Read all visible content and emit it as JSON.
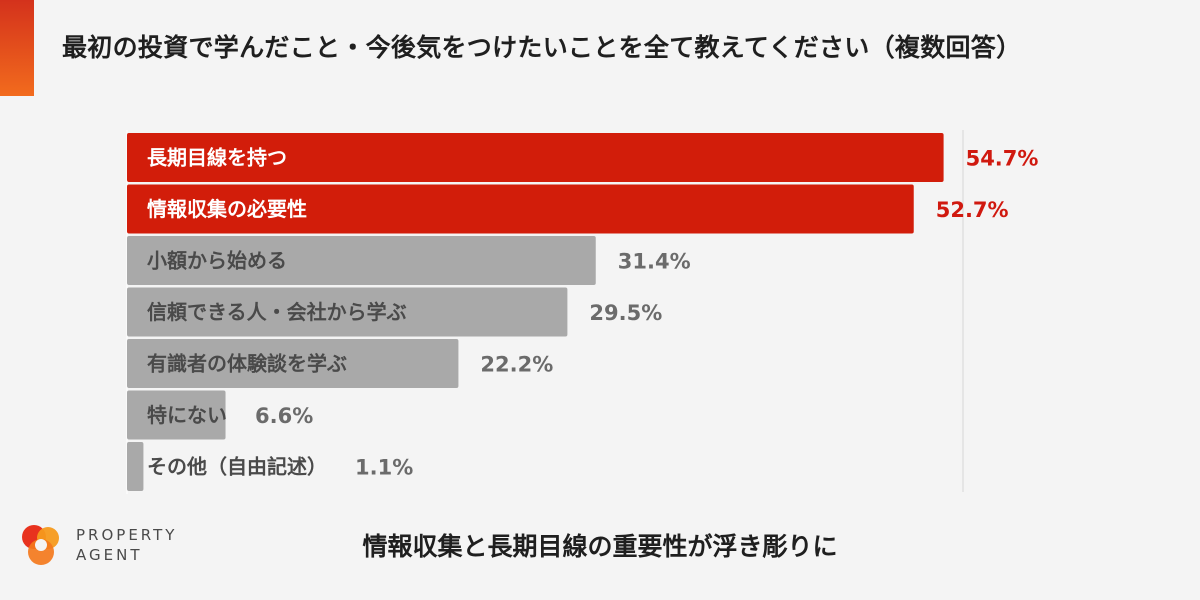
{
  "header": {
    "title": "最初の投資で学んだこと・今後気をつけたいことを全て教えてください（複数回答）"
  },
  "chart_data": {
    "type": "bar",
    "orientation": "horizontal",
    "title": "最初の投資で学んだこと・今後気をつけたいことを全て教えてください（複数回答）",
    "categories": [
      "長期目線を持つ",
      "情報収集の必要性",
      "小額から始める",
      "信頼できる人・会社から学ぶ",
      "有識者の体験談を学ぶ",
      "特にない",
      "その他（自由記述）"
    ],
    "values": [
      54.7,
      52.7,
      31.4,
      29.5,
      22.2,
      6.6,
      1.1
    ],
    "value_labels": [
      "54.7%",
      "52.7%",
      "31.4%",
      "29.5%",
      "22.2%",
      "6.6%",
      "1.1%"
    ],
    "unit": "%",
    "xlim": [
      0,
      56
    ],
    "highlighted": [
      0,
      1
    ],
    "colors": {
      "highlight": "#d21d0a",
      "default": "#a9a9a9",
      "highlight_text": "#d0190f",
      "default_text": "#6b6b6b"
    },
    "grid": false,
    "legend": "none"
  },
  "logo": {
    "line1": "PROPERTY",
    "line2": "AGENT",
    "icon": "property-agent-logo-mark"
  },
  "footer": {
    "conclusion": "情報収集と長期目線の重要性が浮き彫りに"
  }
}
